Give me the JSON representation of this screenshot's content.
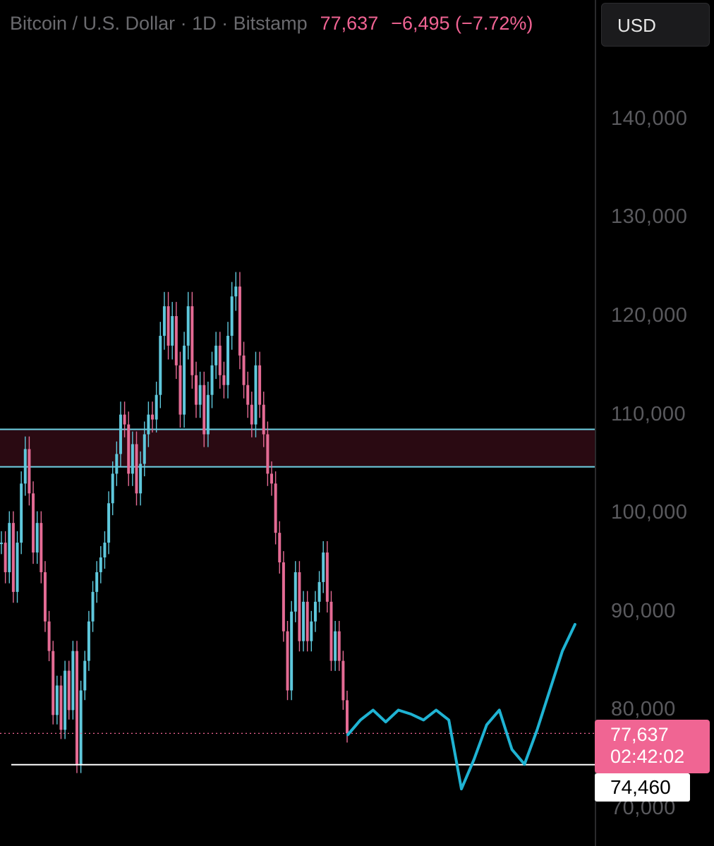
{
  "header": {
    "symbol": "Bitcoin / U.S. Dollar · 1D · Bitstamp",
    "price": "77,637",
    "change": "−6,495 (−7.72%)"
  },
  "currency_button": {
    "label": "USD"
  },
  "price_tag": {
    "price": "77,637",
    "countdown": "02:42:02"
  },
  "level_tag": {
    "label": "74,460"
  },
  "colors": {
    "up": "#5fc8dc",
    "down": "#e46b94",
    "zone_fill": "#2a0a12",
    "zone_line": "#6fd3e6",
    "support_line": "#ffffff",
    "drawing": "#1fb3d3",
    "price_line": "#f06593"
  },
  "chart_data": {
    "type": "line",
    "symbol": "Bitcoin / U.S. Dollar",
    "interval": "1D",
    "exchange": "Bitstamp",
    "y_axis_ticks": [
      70000,
      80000,
      90000,
      100000,
      110000,
      120000,
      130000,
      140000
    ],
    "y_axis_tick_labels": [
      "70,000",
      "80,000",
      "90,000",
      "100,000",
      "110,000",
      "120,000",
      "130,000",
      "140,000"
    ],
    "last_price": 77637,
    "support_level": 74460,
    "resistance_zone": [
      104700,
      108500
    ],
    "series": [
      {
        "values": [
          97000,
          94000,
          99000,
          92000,
          97000,
          103000,
          106500,
          102000,
          96000,
          99000,
          94000,
          89000,
          86000,
          79500,
          82500,
          78000,
          84000,
          80000,
          86000,
          74500,
          82000,
          85000,
          89000,
          92000,
          94000,
          95500,
          97000,
          101000,
          104000,
          106000,
          110000,
          109000,
          104000,
          107000,
          102000,
          105000,
          108000,
          110000,
          109500,
          112000,
          118000,
          121000,
          117000,
          120000,
          115000,
          110000,
          117000,
          121000,
          114000,
          111000,
          113000,
          108000,
          112000,
          115000,
          117000,
          114000,
          113000,
          118000,
          122000,
          123000,
          116000,
          113000,
          111000,
          109000,
          115000,
          111000,
          108000,
          104000,
          103000,
          98000,
          95000,
          88000,
          82000,
          90000,
          94000,
          87000,
          91000,
          87000,
          89000,
          91000,
          93000,
          96000,
          91000,
          85000,
          88000,
          85000,
          81000,
          77637
        ]
      }
    ],
    "projection_path": [
      77500,
      79000,
      80000,
      78800,
      80000,
      79600,
      79000,
      80000,
      79000,
      72000,
      75000,
      78500,
      80000,
      76000,
      74500,
      78000,
      82000,
      86000,
      88700
    ]
  }
}
